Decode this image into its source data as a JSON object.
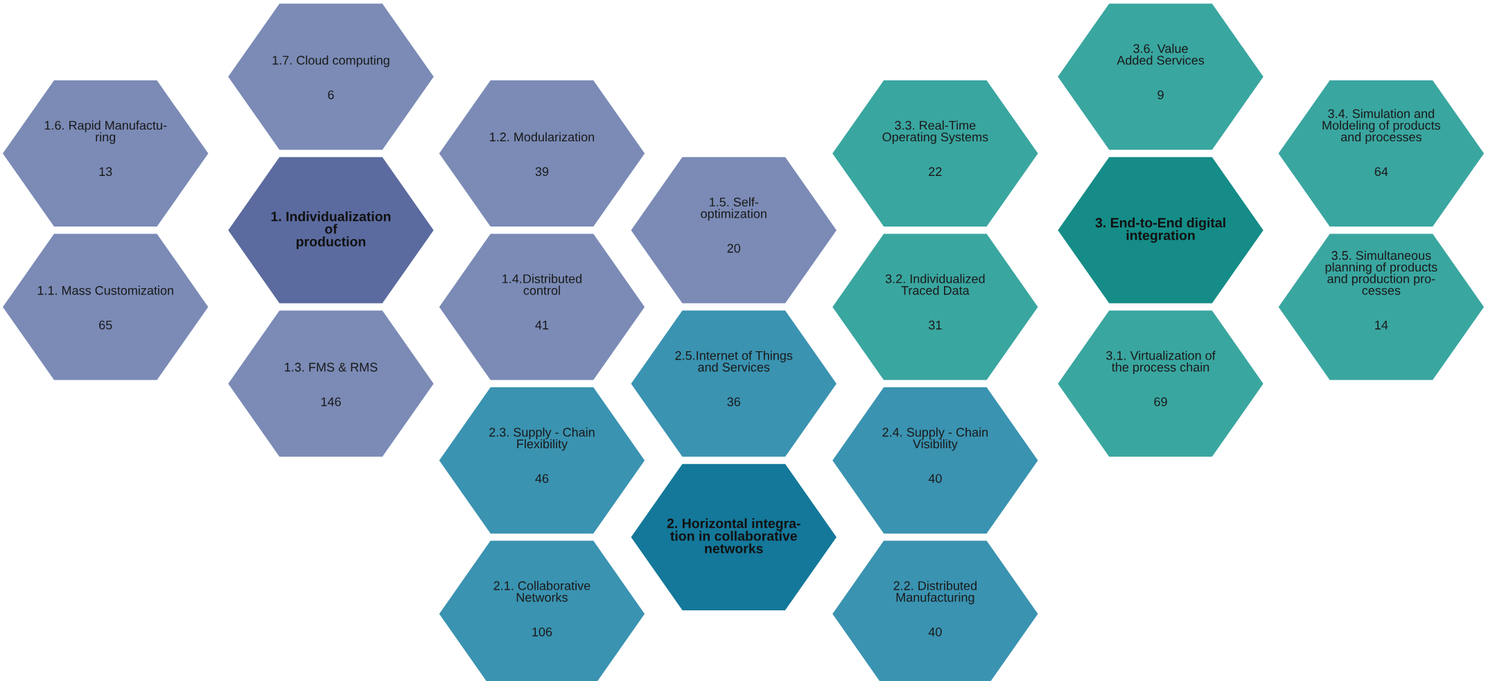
{
  "chart_data": {
    "type": "other",
    "data_labels": true,
    "categories": [
      "1. Individualization\nof\nproduction",
      "1.1. Mass Customization",
      "1.2. Modularization",
      "1.3. FMS & RMS",
      "1.4.Distributed\ncontrol",
      "1.5. Self-\noptimization",
      "1.6. Rapid Manufactu-\nring",
      "1.7. Cloud computing",
      "2. Horizontal integra-\ntion in collaborative\nnetworks",
      "2.1. Collaborative\nNetworks",
      "2.2. Distributed\nManufacturing",
      "2.3. Supply - Chain\nFlexibility",
      "2.4. Supply - Chain\nVisibility",
      "2.5.Internet of Things\nand Services",
      "3. End-to-End digital\nintegration",
      "3.1. Virtualization of\nthe process chain",
      "3.2. Individualized\nTraced Data",
      "3.3. Real-Time\nOperating Systems",
      "3.4. Simulation and\nMoldeling of products\nand processes",
      "3.5. Simultaneous\nplanning of products\nand production pro-\ncesses",
      "3.6. Value\nAdded Services"
    ],
    "values": [
      null,
      65,
      39,
      146,
      41,
      20,
      13,
      6,
      null,
      106,
      40,
      46,
      40,
      36,
      null,
      69,
      31,
      22,
      64,
      14,
      9
    ],
    "colors": [
      "#5b6b9f",
      "#7b8bb6",
      "#7b8bb6",
      "#7b8bb6",
      "#7b8bb6",
      "#7b8bb6",
      "#7b8bb6",
      "#7b8bb6",
      "#14789a",
      "#3a93b1",
      "#3a93b1",
      "#3a93b1",
      "#3a93b1",
      "#3a93b1",
      "#158c87",
      "#3aa6a0",
      "#3aa6a0",
      "#3aa6a0",
      "#3aa6a0",
      "#3aa6a0",
      "#3aa6a0"
    ]
  }
}
